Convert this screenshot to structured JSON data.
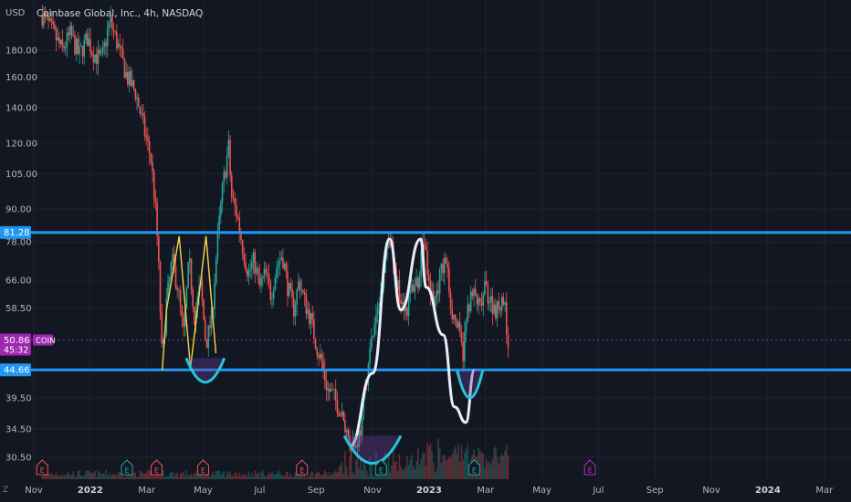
{
  "header": {
    "currency": "USD",
    "symbol_line": "Coinbase Global, Inc., 4h, NASDAQ"
  },
  "colors": {
    "background": "#131722",
    "grid": "#1f2330",
    "bull": "#26a69a",
    "bear": "#ef5350",
    "level_line": "#2196f3",
    "price_line": "#9c27b0",
    "pattern_white": "#e8eef8",
    "pattern_yellow": "#f5d547",
    "arc": "#26c6da",
    "earnings_green": "#26a69a",
    "earnings_red": "#ef5350",
    "earnings_purple": "#c026d3"
  },
  "chart_data": {
    "type": "candlestick",
    "title": "Coinbase Global, Inc., 4h, NASDAQ",
    "ylabel": "USD",
    "y_scale": "log",
    "ylim": [
      28,
      225
    ],
    "x_ticks": [
      "Nov",
      "2022",
      "Mar",
      "May",
      "Jul",
      "Sep",
      "Nov",
      "2023",
      "Mar",
      "May",
      "Jul",
      "Sep",
      "Nov",
      "2024",
      "Mar"
    ],
    "y_ticks": [
      "180.00",
      "160.00",
      "140.00",
      "120.00",
      "105.00",
      "90.00",
      "78.00",
      "66.00",
      "58.50",
      "39.50",
      "34.50",
      "30.50"
    ],
    "horizontal_levels": [
      {
        "label": "81.28",
        "value": 81.28
      },
      {
        "label": "44.66",
        "value": 44.66
      }
    ],
    "current_price": {
      "value": 50.86,
      "label": "50.86",
      "countdown": "45:32",
      "tag": "COIN"
    },
    "price_path_months": [
      [
        0.3,
        210
      ],
      [
        0.6,
        198
      ],
      [
        1.0,
        180
      ],
      [
        1.3,
        193
      ],
      [
        1.6,
        176
      ],
      [
        1.9,
        190
      ],
      [
        2.1,
        178
      ],
      [
        2.4,
        172
      ],
      [
        2.7,
        205
      ],
      [
        3.0,
        182
      ],
      [
        3.3,
        160
      ],
      [
        3.6,
        150
      ],
      [
        3.9,
        128
      ],
      [
        4.15,
        112
      ],
      [
        4.3,
        92
      ],
      [
        4.4,
        75
      ],
      [
        4.55,
        46
      ],
      [
        4.7,
        60
      ],
      [
        4.9,
        72
      ],
      [
        5.1,
        64
      ],
      [
        5.3,
        52
      ],
      [
        5.5,
        72
      ],
      [
        5.7,
        56
      ],
      [
        5.9,
        65
      ],
      [
        6.1,
        50
      ],
      [
        6.3,
        56
      ],
      [
        6.5,
        78
      ],
      [
        6.7,
        100
      ],
      [
        6.9,
        118
      ],
      [
        7.0,
        95
      ],
      [
        7.2,
        88
      ],
      [
        7.4,
        76
      ],
      [
        7.6,
        68
      ],
      [
        7.8,
        72
      ],
      [
        8.0,
        64
      ],
      [
        8.2,
        68
      ],
      [
        8.4,
        62
      ],
      [
        8.6,
        70
      ],
      [
        8.8,
        74
      ],
      [
        9.0,
        64
      ],
      [
        9.2,
        58
      ],
      [
        9.4,
        66
      ],
      [
        9.6,
        60
      ],
      [
        9.8,
        56
      ],
      [
        10.0,
        50
      ],
      [
        10.2,
        46
      ],
      [
        10.4,
        41
      ],
      [
        10.6,
        40
      ],
      [
        10.8,
        38
      ],
      [
        11.0,
        35
      ],
      [
        11.2,
        33
      ],
      [
        11.4,
        32
      ],
      [
        11.6,
        35
      ],
      [
        11.8,
        44
      ],
      [
        12.0,
        52
      ],
      [
        12.2,
        58
      ],
      [
        12.4,
        70
      ],
      [
        12.6,
        82
      ],
      [
        12.8,
        66
      ],
      [
        13.0,
        62
      ],
      [
        13.2,
        58
      ],
      [
        13.4,
        64
      ],
      [
        13.6,
        66
      ],
      [
        13.8,
        80
      ],
      [
        14.0,
        64
      ],
      [
        14.2,
        60
      ],
      [
        14.4,
        68
      ],
      [
        14.6,
        72
      ],
      [
        14.8,
        58
      ],
      [
        15.0,
        54
      ],
      [
        15.2,
        48
      ],
      [
        15.4,
        60
      ],
      [
        15.6,
        62
      ],
      [
        15.8,
        58
      ],
      [
        16.0,
        64
      ],
      [
        16.2,
        60
      ],
      [
        16.4,
        58
      ],
      [
        16.6,
        62
      ],
      [
        16.7,
        57
      ],
      [
        16.8,
        50.86
      ]
    ],
    "annotations": {
      "yellow_zigzag": [
        [
          4.55,
          44.6
        ],
        [
          4.7,
          58
        ],
        [
          5.15,
          80
        ],
        [
          5.55,
          45
        ],
        [
          6.1,
          80
        ],
        [
          6.45,
          48
        ]
      ],
      "white_zigzag": [
        [
          11.2,
          32
        ],
        [
          12.0,
          44
        ],
        [
          12.6,
          79
        ],
        [
          13.0,
          58
        ],
        [
          13.7,
          79
        ],
        [
          13.9,
          64
        ],
        [
          14.5,
          52
        ],
        [
          14.9,
          38
        ],
        [
          15.3,
          35.5
        ],
        [
          15.6,
          44.5
        ]
      ],
      "arcs": [
        {
          "x_start": 5.4,
          "x_end": 6.75,
          "y_top": 47,
          "y_bottom": 42.3
        },
        {
          "x_start": 11.0,
          "x_end": 13.0,
          "y_top": 33.5,
          "y_bottom": 29.7
        },
        {
          "x_start": 15.0,
          "x_end": 15.9,
          "y_top": 44.5,
          "y_bottom": 39.5
        }
      ]
    },
    "earnings_markers": [
      {
        "month": 0.3,
        "letter": "E",
        "kind": "red"
      },
      {
        "month": 3.3,
        "letter": "E",
        "kind": "green"
      },
      {
        "month": 4.35,
        "letter": "E",
        "kind": "red"
      },
      {
        "month": 6.0,
        "letter": "E",
        "kind": "red"
      },
      {
        "month": 9.5,
        "letter": "E",
        "kind": "red"
      },
      {
        "month": 12.3,
        "letter": "E",
        "kind": "green"
      },
      {
        "month": 15.6,
        "letter": "E",
        "kind": "green"
      },
      {
        "month": 19.7,
        "letter": "E",
        "kind": "purple"
      }
    ],
    "grid": true
  },
  "bottom": {
    "timezone_icon_glyph": "Z"
  }
}
